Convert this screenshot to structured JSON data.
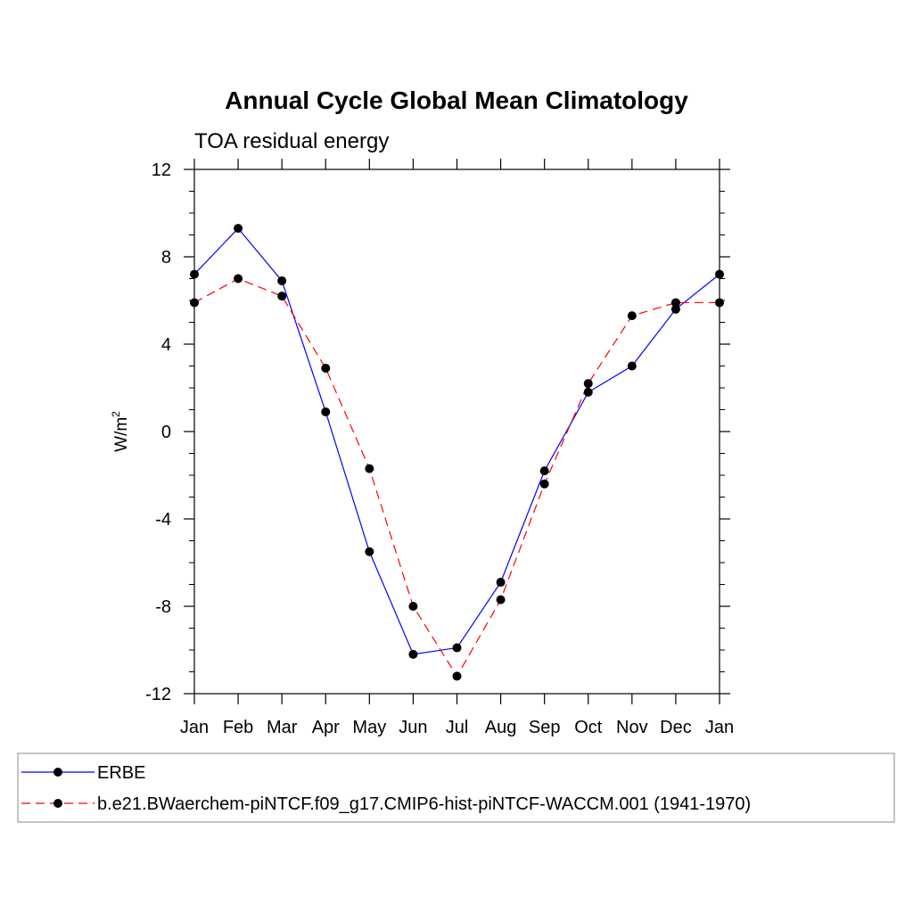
{
  "chart_data": {
    "type": "line",
    "title": "Annual Cycle Global Mean Climatology",
    "subtitle": "TOA residual energy",
    "ylabel_base": "W/m",
    "ylabel_sup": "2",
    "xlabel": "",
    "categories": [
      "Jan",
      "Feb",
      "Mar",
      "Apr",
      "May",
      "Jun",
      "Jul",
      "Aug",
      "Sep",
      "Oct",
      "Nov",
      "Dec",
      "Jan"
    ],
    "ylim": [
      -12,
      12
    ],
    "yticks": [
      "12",
      "8",
      "4",
      "0",
      "-4",
      "-8",
      "-12"
    ],
    "ytick_values": [
      12,
      8,
      4,
      0,
      -4,
      -8,
      -12
    ],
    "grid": false,
    "legend_position": "bottom",
    "series": [
      {
        "name": "ERBE",
        "line_style": "solid",
        "color": "#0000ff",
        "marker_color": "#000000",
        "values": [
          7.2,
          9.3,
          6.9,
          0.9,
          -5.5,
          -10.2,
          -9.9,
          -6.9,
          -1.8,
          1.8,
          3.0,
          5.6,
          7.2
        ]
      },
      {
        "name": "b.e21.BWaerchem-piNTCF.f09_g17.CMIP6-hist-piNTCF-WACCM.001 (1941-1970)",
        "line_style": "dashed",
        "color": "#ff0000",
        "marker_color": "#000000",
        "values": [
          5.9,
          7.0,
          6.2,
          2.9,
          -1.7,
          -8.0,
          -11.2,
          -7.7,
          -2.4,
          2.2,
          5.3,
          5.9,
          5.9
        ]
      }
    ]
  }
}
